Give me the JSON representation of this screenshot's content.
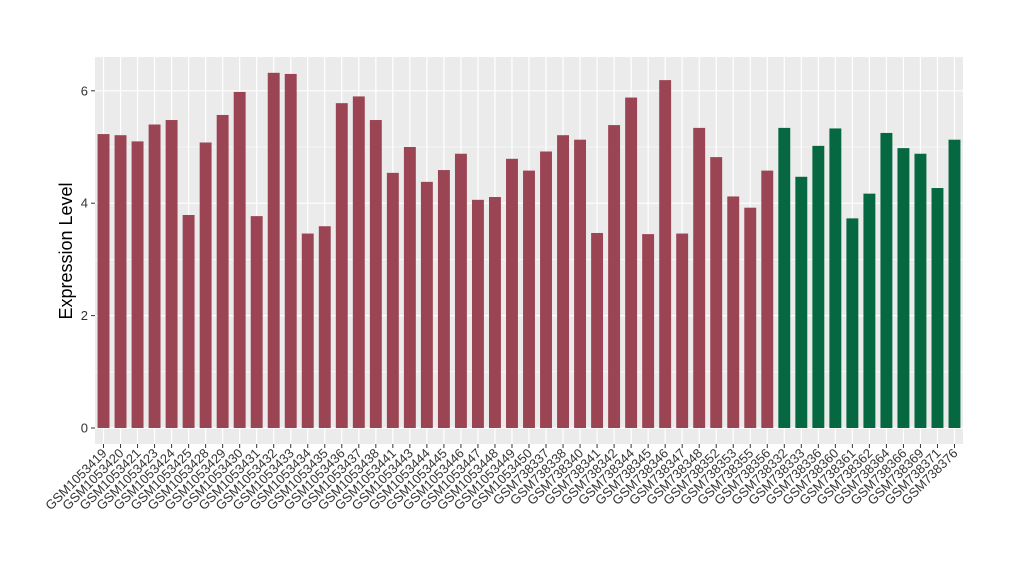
{
  "chart_data": {
    "type": "bar",
    "title": "",
    "xlabel": "",
    "ylabel": "Expression Level",
    "ylim": [
      0,
      6.6
    ],
    "yticks": [
      0,
      2,
      4,
      6
    ],
    "grid": true,
    "legend": "none",
    "colors": {
      "group1": "#9b4453",
      "group2": "#056840",
      "panel": "#ebebeb",
      "grid": "#ffffff"
    },
    "categories": [
      "GSM1053419",
      "GSM1053420",
      "GSM1053421",
      "GSM1053423",
      "GSM1053424",
      "GSM1053425",
      "GSM1053428",
      "GSM1053429",
      "GSM1053430",
      "GSM1053431",
      "GSM1053432",
      "GSM1053433",
      "GSM1053434",
      "GSM1053435",
      "GSM1053436",
      "GSM1053437",
      "GSM1053438",
      "GSM1053441",
      "GSM1053443",
      "GSM1053444",
      "GSM1053445",
      "GSM1053446",
      "GSM1053447",
      "GSM1053448",
      "GSM1053449",
      "GSM1053450",
      "GSM738337",
      "GSM738338",
      "GSM738340",
      "GSM738341",
      "GSM738342",
      "GSM738344",
      "GSM738345",
      "GSM738346",
      "GSM738347",
      "GSM738348",
      "GSM738352",
      "GSM738353",
      "GSM738355",
      "GSM738356",
      "GSM738332",
      "GSM738333",
      "GSM738336",
      "GSM738360",
      "GSM738361",
      "GSM738362",
      "GSM738364",
      "GSM738366",
      "GSM738369",
      "GSM738371",
      "GSM738376"
    ],
    "values": [
      5.23,
      5.21,
      5.1,
      5.4,
      5.48,
      3.79,
      5.08,
      5.57,
      5.98,
      3.77,
      6.32,
      6.3,
      3.46,
      3.59,
      5.78,
      5.9,
      5.48,
      4.54,
      5.0,
      4.38,
      4.59,
      4.88,
      4.06,
      4.11,
      4.79,
      4.58,
      4.92,
      5.21,
      5.13,
      3.47,
      5.39,
      5.88,
      3.45,
      6.19,
      3.46,
      5.34,
      4.82,
      4.12,
      3.92,
      4.58,
      5.34,
      4.47,
      5.02,
      5.33,
      3.73,
      4.17,
      5.25,
      4.98,
      4.88,
      4.27,
      5.13
    ],
    "groups": [
      1,
      1,
      1,
      1,
      1,
      1,
      1,
      1,
      1,
      1,
      1,
      1,
      1,
      1,
      1,
      1,
      1,
      1,
      1,
      1,
      1,
      1,
      1,
      1,
      1,
      1,
      1,
      1,
      1,
      1,
      1,
      1,
      1,
      1,
      1,
      1,
      1,
      1,
      1,
      1,
      2,
      2,
      2,
      2,
      2,
      2,
      2,
      2,
      2,
      2,
      2
    ]
  }
}
